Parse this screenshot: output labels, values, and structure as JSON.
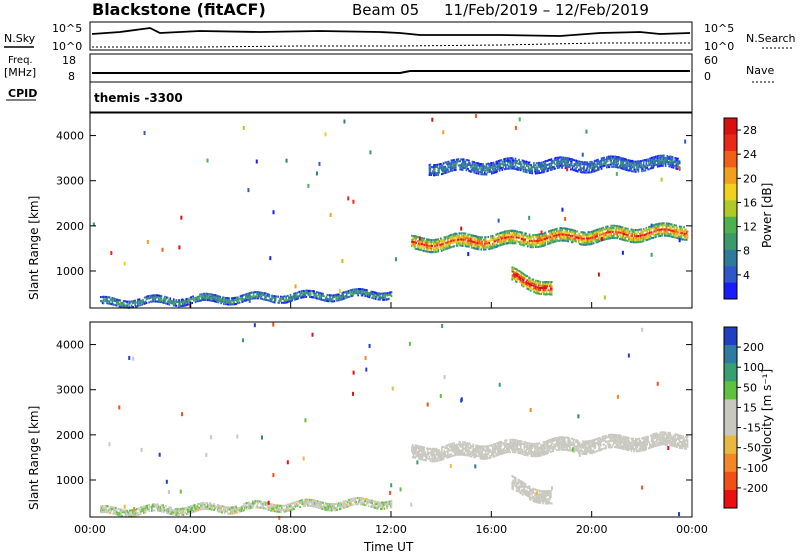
{
  "header": {
    "title": "Blackstone (fitACF)",
    "beam": "Beam 05",
    "date_range": "11/Feb/2019 – 12/Feb/2019"
  },
  "panels": {
    "nsky": {
      "label": "N.Sky",
      "tick_hi": "10^5",
      "tick_lo": "10^0",
      "right_label": "N.Search",
      "right_tick_hi": "10^5",
      "right_tick_lo": "10^0"
    },
    "freq": {
      "label_line1": "Freq.",
      "label_line2": "[MHz]",
      "tick_hi": "18",
      "tick_lo": "8",
      "right_label": "Nave",
      "right_tick_hi": "60",
      "right_tick_lo": "0"
    },
    "cpid": {
      "label": "CPID",
      "value": "themis -3300"
    }
  },
  "colors": {
    "power": [
      "#1a1aff",
      "#2e58c8",
      "#2f7a9a",
      "#3a9a6a",
      "#50b050",
      "#b0c828",
      "#f0d020",
      "#f0a020",
      "#f06018",
      "#e82818",
      "#d81010"
    ],
    "velocity": [
      "#e81010",
      "#f05018",
      "#f08828",
      "#e8b840",
      "#c8c8c0",
      "#c8c8c0",
      "#60c040",
      "#38a070",
      "#2e7aa0",
      "#2040c0"
    ],
    "ground_scatter": "#c8c8c0"
  },
  "chart_data": [
    {
      "type": "heatmap",
      "panel": "power",
      "ylabel": "Slant Range [km]",
      "y_ticks": [
        "1000",
        "2000",
        "3000",
        "4000"
      ],
      "ylim": [
        180,
        4500
      ],
      "x_ticks": [
        "00:00",
        "04:00",
        "08:00",
        "12:00",
        "16:00",
        "20:00",
        "00:00"
      ],
      "xlim_hours": [
        0,
        24
      ],
      "colorbar": {
        "label": "Power [dB]",
        "ticks": [
          "4",
          "8",
          "12",
          "16",
          "20",
          "24",
          "28"
        ],
        "range": [
          0,
          30
        ]
      },
      "regions": [
        {
          "t": [
            12.8,
            23.8
          ],
          "r_center": [
            1600,
            1900
          ],
          "r_width": 350,
          "value": 18
        },
        {
          "t": [
            16.8,
            18.4
          ],
          "r_center": [
            900,
            600
          ],
          "r_width": 350,
          "value": 22
        },
        {
          "t": [
            0.4,
            12.0
          ],
          "r_center": [
            300,
            500
          ],
          "r_width": 200,
          "value": 8
        },
        {
          "t": [
            13.5,
            23.5
          ],
          "r_center": [
            3300,
            3400
          ],
          "r_width": 300,
          "value": 6
        }
      ]
    },
    {
      "type": "heatmap",
      "panel": "velocity",
      "ylabel": "Slant Range [km]",
      "y_ticks": [
        "1000",
        "2000",
        "3000",
        "4000"
      ],
      "ylim": [
        180,
        4500
      ],
      "x_ticks": [
        "00:00",
        "04:00",
        "08:00",
        "12:00",
        "16:00",
        "20:00",
        "00:00"
      ],
      "xlabel": "Time UT",
      "colorbar": {
        "label": "Velocity [m s⁻¹]",
        "ticks": [
          "200",
          "100",
          "50",
          "15",
          "-15",
          "-50",
          "-100",
          "-200"
        ],
        "range": [
          -250,
          250
        ]
      },
      "regions": [
        {
          "t": [
            12.8,
            23.8
          ],
          "r_center": [
            1600,
            1900
          ],
          "r_width": 350,
          "value": 0
        },
        {
          "t": [
            16.8,
            18.4
          ],
          "r_center": [
            900,
            600
          ],
          "r_width": 350,
          "value": 0
        },
        {
          "t": [
            0.4,
            12.0
          ],
          "r_center": [
            300,
            500
          ],
          "r_width": 200,
          "value": 20
        }
      ]
    }
  ]
}
